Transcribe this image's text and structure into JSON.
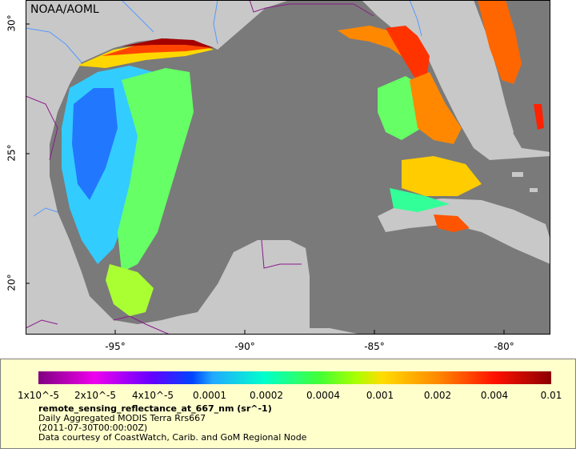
{
  "org_label": "NOAA/AOML",
  "colors": {
    "land": "#c8c8c8",
    "water_nodata": "#7a7a7a",
    "legend_bg": "#ffffcc",
    "border": "#8b1a8b",
    "river": "#5599ff"
  },
  "axes": {
    "y_ticks": [
      "30°",
      "25°",
      "20°"
    ],
    "x_ticks": [
      "-95°",
      "-90°",
      "-85°",
      "-80°"
    ]
  },
  "legend": {
    "scale_labels": [
      "1x10^-5",
      "2x10^-5",
      "4x10^-5",
      "0.0001",
      "0.0002",
      "0.0004",
      "0.001",
      "0.002",
      "0.004",
      "0.01"
    ],
    "variable": "remote_sensing_reflectance_at_667_nm (sr^-1)",
    "description": "Daily Aggregated MODIS Terra Rrs667",
    "timestamp": "(2011-07-30T00:00:00Z)",
    "credit": "Data courtesy of CoastWatch, Carib. and GoM Regional Node"
  }
}
